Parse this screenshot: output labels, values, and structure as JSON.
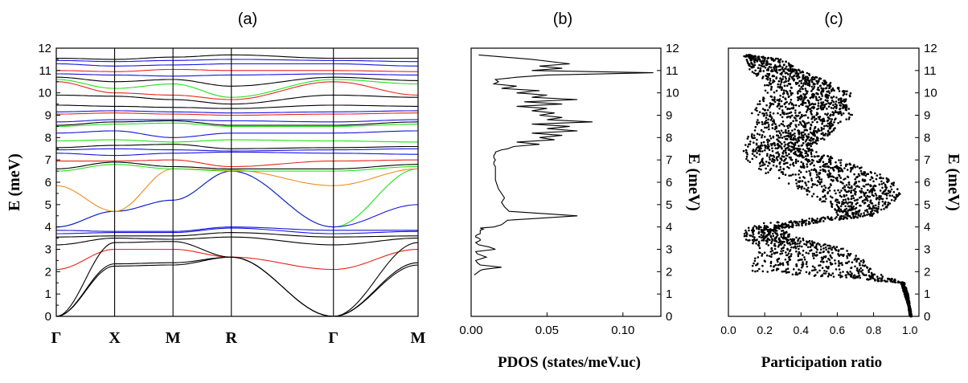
{
  "chart_data": [
    {
      "type": "line",
      "panel_label": "(a)",
      "ylabel": "E (meV)",
      "xlabel": "",
      "ylim": [
        0,
        12
      ],
      "yticks": [
        "0",
        "1",
        "2",
        "3",
        "4",
        "5",
        "6",
        "7",
        "8",
        "9",
        "10",
        "11",
        "12"
      ],
      "kpoints": [
        "Γ",
        "X",
        "M",
        "R",
        "Γ",
        "M"
      ],
      "kpoint_positions": [
        0,
        1,
        2,
        3,
        4.75,
        6.2
      ],
      "colors": {
        "black": "#000000",
        "red": "#e8251b",
        "green": "#1fe31a",
        "blue": "#1616e0",
        "orange": "#f08a1c"
      },
      "series": [
        {
          "color": "black",
          "values": [
            0.0,
            2.35,
            2.4,
            2.65,
            0.0,
            2.4
          ]
        },
        {
          "color": "black",
          "values": [
            0.0,
            2.25,
            2.3,
            2.65,
            0.0,
            2.3
          ]
        },
        {
          "color": "red",
          "values": [
            2.1,
            3.0,
            3.0,
            2.65,
            2.1,
            3.0
          ]
        },
        {
          "color": "black",
          "values": [
            0.0,
            3.3,
            3.35,
            2.65,
            0.0,
            3.3
          ]
        },
        {
          "color": "black",
          "values": [
            3.2,
            3.5,
            3.45,
            3.55,
            3.2,
            3.5
          ]
        },
        {
          "color": "black",
          "values": [
            3.55,
            3.6,
            3.6,
            3.75,
            3.55,
            3.6
          ]
        },
        {
          "color": "blue",
          "values": [
            3.7,
            3.75,
            3.75,
            3.95,
            3.7,
            3.8
          ]
        },
        {
          "color": "blue",
          "values": [
            3.85,
            3.8,
            3.8,
            4.0,
            3.85,
            3.85
          ]
        },
        {
          "color": "green",
          "values": [
            4.0,
            4.7,
            5.2,
            6.5,
            4.0,
            6.6
          ]
        },
        {
          "color": "blue",
          "values": [
            4.0,
            4.7,
            5.2,
            6.5,
            4.0,
            5.0
          ]
        },
        {
          "color": "orange",
          "values": [
            5.85,
            4.7,
            6.6,
            6.55,
            5.85,
            6.6
          ]
        },
        {
          "color": "green",
          "values": [
            6.5,
            6.8,
            6.6,
            6.5,
            6.5,
            6.7
          ]
        },
        {
          "color": "black",
          "values": [
            6.6,
            6.9,
            6.7,
            6.6,
            6.6,
            6.8
          ]
        },
        {
          "color": "red",
          "values": [
            6.95,
            6.95,
            7.0,
            6.7,
            6.95,
            7.0
          ]
        },
        {
          "color": "blue",
          "values": [
            7.3,
            7.2,
            7.3,
            7.35,
            7.3,
            7.25
          ]
        },
        {
          "color": "blue",
          "values": [
            7.45,
            7.5,
            7.45,
            7.4,
            7.45,
            7.5
          ]
        },
        {
          "color": "black",
          "values": [
            7.55,
            7.65,
            7.7,
            7.5,
            7.55,
            7.6
          ]
        },
        {
          "color": "green",
          "values": [
            7.85,
            7.9,
            7.8,
            7.9,
            7.85,
            7.8
          ]
        },
        {
          "color": "blue",
          "values": [
            8.2,
            8.3,
            8.0,
            8.2,
            8.2,
            8.3
          ]
        },
        {
          "color": "green",
          "values": [
            8.5,
            8.6,
            8.65,
            8.5,
            8.5,
            8.6
          ]
        },
        {
          "color": "black",
          "values": [
            8.55,
            8.7,
            8.75,
            8.55,
            8.55,
            8.7
          ]
        },
        {
          "color": "blue",
          "values": [
            8.7,
            8.8,
            8.8,
            8.75,
            8.7,
            8.8
          ]
        },
        {
          "color": "red",
          "values": [
            9.05,
            9.1,
            9.05,
            9.0,
            9.05,
            9.1
          ]
        },
        {
          "color": "blue",
          "values": [
            9.15,
            9.2,
            9.15,
            9.1,
            9.15,
            9.2
          ]
        },
        {
          "color": "black",
          "values": [
            9.45,
            9.4,
            9.35,
            9.3,
            9.45,
            9.4
          ]
        },
        {
          "color": "black",
          "values": [
            9.9,
            9.85,
            9.7,
            9.5,
            9.9,
            9.8
          ]
        },
        {
          "color": "red",
          "values": [
            10.5,
            10.0,
            9.9,
            9.7,
            10.5,
            9.9
          ]
        },
        {
          "color": "green",
          "values": [
            10.6,
            10.2,
            10.4,
            9.8,
            10.6,
            10.4
          ]
        },
        {
          "color": "black",
          "values": [
            10.7,
            10.5,
            10.6,
            10.3,
            10.7,
            10.55
          ]
        },
        {
          "color": "blue",
          "values": [
            10.85,
            10.8,
            10.75,
            10.8,
            10.85,
            10.8
          ]
        },
        {
          "color": "red",
          "values": [
            11.0,
            10.95,
            11.05,
            11.0,
            11.0,
            10.95
          ]
        },
        {
          "color": "blue",
          "values": [
            11.3,
            11.2,
            11.25,
            11.3,
            11.3,
            11.2
          ]
        },
        {
          "color": "blue",
          "values": [
            11.45,
            11.4,
            11.45,
            11.5,
            11.45,
            11.4
          ]
        },
        {
          "color": "black",
          "values": [
            11.55,
            11.5,
            11.6,
            11.7,
            11.55,
            11.55
          ]
        }
      ]
    },
    {
      "type": "line",
      "panel_label": "(b)",
      "xlabel": "PDOS (states/meV.uc)",
      "ylabel": "E (meV)",
      "xlim": [
        0,
        0.125
      ],
      "ylim": [
        0,
        12
      ],
      "xticks": [
        "0.00",
        "0.05",
        "0.10"
      ],
      "yticks": [
        "0",
        "1",
        "2",
        "3",
        "4",
        "5",
        "6",
        "7",
        "8",
        "9",
        "10",
        "11",
        "12"
      ],
      "y_axis_side": "right",
      "series": [
        {
          "x": [
            0.002,
            0.004,
            0.006,
            0.008,
            0.02,
            0.006,
            0.004,
            0.003,
            0.01,
            0.004,
            0.003,
            0.016,
            0.012,
            0.005,
            0.003,
            0.006,
            0.006,
            0.005,
            0.003,
            0.003,
            0.004,
            0.006,
            0.006,
            0.006,
            0.006,
            0.008,
            0.006,
            0.015,
            0.02,
            0.024,
            0.07,
            0.025,
            0.022,
            0.02,
            0.022,
            0.02,
            0.018,
            0.017,
            0.016,
            0.016,
            0.016,
            0.016,
            0.016,
            0.015,
            0.015,
            0.016,
            0.015,
            0.015,
            0.015,
            0.016,
            0.016,
            0.018,
            0.02,
            0.024,
            0.028,
            0.045,
            0.03,
            0.055,
            0.045,
            0.06,
            0.04,
            0.07,
            0.05,
            0.065,
            0.04,
            0.08,
            0.05,
            0.06,
            0.045,
            0.055,
            0.04,
            0.05,
            0.03,
            0.06,
            0.035,
            0.07,
            0.04,
            0.05,
            0.03,
            0.045,
            0.02,
            0.03,
            0.015,
            0.018,
            0.016,
            0.03,
            0.05,
            0.12,
            0.04,
            0.06,
            0.045,
            0.065,
            0.04,
            0.005
          ],
          "y": [
            1.85,
            1.95,
            2.05,
            2.1,
            2.2,
            2.3,
            2.4,
            2.5,
            2.65,
            2.8,
            2.9,
            3.0,
            3.1,
            3.2,
            3.3,
            3.4,
            3.45,
            3.5,
            3.55,
            3.6,
            3.65,
            3.7,
            3.75,
            3.8,
            3.85,
            3.9,
            3.95,
            4.0,
            4.1,
            4.3,
            4.5,
            4.7,
            4.9,
            5.1,
            5.3,
            5.5,
            5.7,
            5.9,
            6.1,
            6.3,
            6.5,
            6.6,
            6.7,
            6.8,
            6.9,
            7.0,
            7.1,
            7.15,
            7.2,
            7.3,
            7.35,
            7.4,
            7.45,
            7.5,
            7.6,
            7.7,
            7.8,
            7.9,
            8.0,
            8.1,
            8.2,
            8.3,
            8.4,
            8.5,
            8.6,
            8.7,
            8.8,
            8.9,
            9.0,
            9.1,
            9.2,
            9.3,
            9.4,
            9.5,
            9.6,
            9.7,
            9.8,
            9.9,
            10.0,
            10.1,
            10.2,
            10.3,
            10.4,
            10.5,
            10.6,
            10.7,
            10.8,
            10.9,
            11.0,
            11.1,
            11.2,
            11.3,
            11.5,
            11.7
          ]
        }
      ]
    },
    {
      "type": "scatter",
      "panel_label": "(c)",
      "xlabel": "Participation ratio",
      "ylabel": "E (meV)",
      "xlim": [
        0.0,
        1.05
      ],
      "ylim": [
        0,
        12
      ],
      "xticks": [
        "0.0",
        "0.2",
        "0.4",
        "0.6",
        "0.8",
        "1.0"
      ],
      "yticks": [
        "0",
        "1",
        "2",
        "3",
        "4",
        "5",
        "6",
        "7",
        "8",
        "9",
        "10",
        "11",
        "12"
      ],
      "y_axis_side": "right",
      "envelope": {
        "y": [
          0.0,
          0.5,
          1.0,
          1.5,
          2.0,
          2.5,
          3.0,
          3.3,
          3.6,
          3.9,
          4.2,
          4.5,
          5.0,
          5.5,
          6.0,
          6.5,
          7.0,
          7.5,
          8.0,
          8.5,
          9.0,
          9.5,
          10.0,
          10.5,
          11.0,
          11.5,
          11.7
        ],
        "x_low": [
          1.0,
          0.99,
          0.97,
          0.95,
          0.12,
          0.12,
          0.15,
          0.12,
          0.07,
          0.07,
          0.2,
          0.6,
          0.55,
          0.42,
          0.3,
          0.18,
          0.1,
          0.08,
          0.1,
          0.15,
          0.12,
          0.15,
          0.2,
          0.2,
          0.12,
          0.08,
          0.08
        ],
        "x_high": [
          1.01,
          1.0,
          0.99,
          0.97,
          0.8,
          0.75,
          0.65,
          0.5,
          0.35,
          0.3,
          0.5,
          0.8,
          0.9,
          0.95,
          0.92,
          0.8,
          0.62,
          0.45,
          0.55,
          0.6,
          0.7,
          0.65,
          0.68,
          0.55,
          0.4,
          0.3,
          0.12
        ]
      }
    }
  ]
}
